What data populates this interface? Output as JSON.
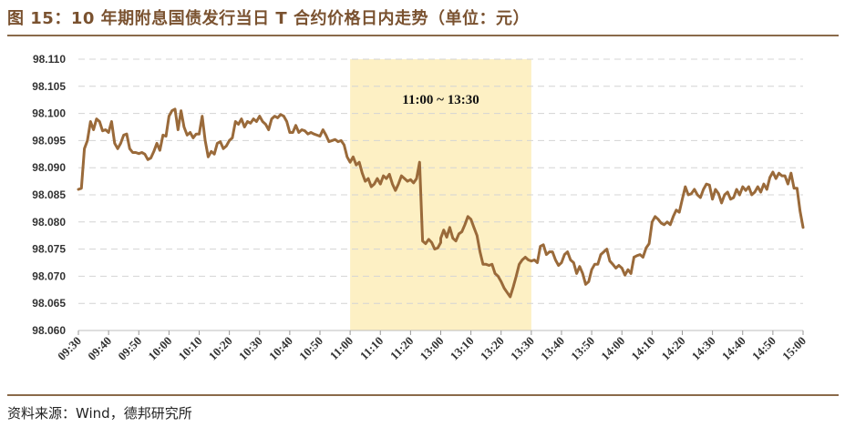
{
  "title": "图 15：10 年期附息国债发行当日 T 合约价格日内走势（单位：元）",
  "source": "资料来源：Wind，德邦研究所",
  "chart_data": {
    "type": "line",
    "title": "图 15：10 年期附息国债发行当日 T 合约价格日内走势（单位：元）",
    "xlabel": "",
    "ylabel": "",
    "ylim": [
      98.06,
      98.11
    ],
    "yticks": [
      "98.110",
      "98.105",
      "98.100",
      "98.095",
      "98.090",
      "98.085",
      "98.080",
      "98.075",
      "98.070",
      "98.065",
      "98.060"
    ],
    "xticks": [
      "09:30",
      "09:40",
      "09:50",
      "10:00",
      "10:10",
      "10:20",
      "10:30",
      "10:40",
      "10:50",
      "11:00",
      "11:10",
      "11:20",
      "13:00",
      "13:10",
      "13:20",
      "13:30",
      "13:40",
      "13:50",
      "14:00",
      "14:10",
      "14:20",
      "14:30",
      "14:40",
      "14:50",
      "15:00"
    ],
    "grid": "horizontal dashed",
    "legend": "none",
    "highlight": {
      "start": "11:00",
      "end": "13:30",
      "label": "11:00 ~ 13:30",
      "color": "#fdf0c4"
    },
    "series": [
      {
        "color": "#9a6a3a",
        "points": [
          [
            "09:30",
            98.086
          ],
          [
            "09:31",
            98.0862
          ],
          [
            "09:32",
            98.0935
          ],
          [
            "09:33",
            98.095
          ],
          [
            "09:34",
            98.0985
          ],
          [
            "09:35",
            98.097
          ],
          [
            "09:36",
            98.099
          ],
          [
            "09:37",
            98.0985
          ],
          [
            "09:38",
            98.0968
          ],
          [
            "09:39",
            98.097
          ],
          [
            "09:40",
            98.0965
          ],
          [
            "09:41",
            98.0985
          ],
          [
            "09:42",
            98.0945
          ],
          [
            "09:43",
            98.0935
          ],
          [
            "09:44",
            98.0945
          ],
          [
            "09:45",
            98.096
          ],
          [
            "09:46",
            98.0962
          ],
          [
            "09:47",
            98.0935
          ],
          [
            "09:48",
            98.0928
          ],
          [
            "09:49",
            98.0928
          ],
          [
            "09:50",
            98.0926
          ],
          [
            "09:51",
            98.0928
          ],
          [
            "09:52",
            98.0925
          ],
          [
            "09:53",
            98.0915
          ],
          [
            "09:54",
            98.0918
          ],
          [
            "09:55",
            98.093
          ],
          [
            "09:56",
            98.0945
          ],
          [
            "09:57",
            98.0932
          ],
          [
            "09:58",
            98.096
          ],
          [
            "09:59",
            98.0958
          ],
          [
            "10:00",
            98.0995
          ],
          [
            "10:01",
            98.1005
          ],
          [
            "10:02",
            98.1008
          ],
          [
            "10:03",
            98.097
          ],
          [
            "10:04",
            98.1005
          ],
          [
            "10:05",
            98.0975
          ],
          [
            "10:06",
            98.096
          ],
          [
            "10:07",
            98.0965
          ],
          [
            "10:08",
            98.0955
          ],
          [
            "10:09",
            98.0962
          ],
          [
            "10:10",
            98.0962
          ],
          [
            "10:11",
            98.0995
          ],
          [
            "10:12",
            98.095
          ],
          [
            "10:13",
            98.092
          ],
          [
            "10:14",
            98.093
          ],
          [
            "10:15",
            98.0925
          ],
          [
            "10:16",
            98.0945
          ],
          [
            "10:17",
            98.0948
          ],
          [
            "10:18",
            98.0935
          ],
          [
            "10:19",
            98.094
          ],
          [
            "10:20",
            98.095
          ],
          [
            "10:21",
            98.0955
          ],
          [
            "10:22",
            98.0985
          ],
          [
            "10:23",
            98.098
          ],
          [
            "10:24",
            98.099
          ],
          [
            "10:25",
            98.0975
          ],
          [
            "10:26",
            98.0985
          ],
          [
            "10:27",
            98.0982
          ],
          [
            "10:28",
            98.099
          ],
          [
            "10:29",
            98.0985
          ],
          [
            "10:30",
            98.0995
          ],
          [
            "10:31",
            98.0985
          ],
          [
            "10:32",
            98.098
          ],
          [
            "10:33",
            98.097
          ],
          [
            "10:34",
            98.099
          ],
          [
            "10:35",
            98.0995
          ],
          [
            "10:36",
            98.0992
          ],
          [
            "10:37",
            98.0998
          ],
          [
            "10:38",
            98.0995
          ],
          [
            "10:39",
            98.0985
          ],
          [
            "10:40",
            98.0965
          ],
          [
            "10:41",
            98.0965
          ],
          [
            "10:42",
            98.0978
          ],
          [
            "10:43",
            98.0965
          ],
          [
            "10:44",
            98.097
          ],
          [
            "10:45",
            98.0968
          ],
          [
            "10:46",
            98.0962
          ],
          [
            "10:47",
            98.0965
          ],
          [
            "10:48",
            98.0962
          ],
          [
            "10:49",
            98.096
          ],
          [
            "10:50",
            98.0958
          ],
          [
            "10:51",
            98.097
          ],
          [
            "10:52",
            98.096
          ],
          [
            "10:53",
            98.0948
          ],
          [
            "10:54",
            98.095
          ],
          [
            "10:55",
            98.0952
          ],
          [
            "10:56",
            98.0948
          ],
          [
            "10:57",
            98.095
          ],
          [
            "10:58",
            98.0942
          ],
          [
            "10:59",
            98.092
          ],
          [
            "11:00",
            98.091
          ],
          [
            "11:01",
            98.092
          ],
          [
            "11:02",
            98.0905
          ],
          [
            "11:03",
            98.091
          ],
          [
            "11:04",
            98.089
          ],
          [
            "11:05",
            98.0875
          ],
          [
            "11:06",
            98.088
          ],
          [
            "11:07",
            98.0865
          ],
          [
            "11:08",
            98.087
          ],
          [
            "11:09",
            98.088
          ],
          [
            "11:10",
            98.087
          ],
          [
            "11:11",
            98.0885
          ],
          [
            "11:12",
            98.088
          ],
          [
            "11:13",
            98.0888
          ],
          [
            "11:14",
            98.087
          ],
          [
            "11:15",
            98.0858
          ],
          [
            "11:16",
            98.087
          ],
          [
            "11:17",
            98.0885
          ],
          [
            "11:18",
            98.088
          ],
          [
            "11:19",
            98.0875
          ],
          [
            "11:20",
            98.0878
          ],
          [
            "11:21",
            98.0872
          ],
          [
            "11:22",
            98.088
          ],
          [
            "11:23",
            98.091
          ],
          [
            "11:24",
            98.0765
          ],
          [
            "11:25",
            98.076
          ],
          [
            "11:26",
            98.0768
          ],
          [
            "11:27",
            98.0762
          ],
          [
            "11:28",
            98.075
          ],
          [
            "11:29",
            98.0752
          ],
          [
            "11:30",
            98.0762
          ],
          [
            "13:00",
            98.077
          ],
          [
            "13:01",
            98.0785
          ],
          [
            "13:02",
            98.0772
          ],
          [
            "13:03",
            98.079
          ],
          [
            "13:04",
            98.077
          ],
          [
            "13:05",
            98.0765
          ],
          [
            "13:06",
            98.0778
          ],
          [
            "13:07",
            98.0782
          ],
          [
            "13:08",
            98.0795
          ],
          [
            "13:09",
            98.081
          ],
          [
            "13:10",
            98.0805
          ],
          [
            "13:11",
            98.079
          ],
          [
            "13:12",
            98.0775
          ],
          [
            "13:13",
            98.0745
          ],
          [
            "13:14",
            98.0722
          ],
          [
            "13:15",
            98.0722
          ],
          [
            "13:16",
            98.072
          ],
          [
            "13:17",
            98.0722
          ],
          [
            "13:18",
            98.0705
          ],
          [
            "13:19",
            98.07
          ],
          [
            "13:20",
            98.069
          ],
          [
            "13:21",
            98.0678
          ],
          [
            "13:22",
            98.067
          ],
          [
            "13:23",
            98.0662
          ],
          [
            "13:24",
            98.068
          ],
          [
            "13:25",
            98.07
          ],
          [
            "13:26",
            98.0722
          ],
          [
            "13:27",
            98.073
          ],
          [
            "13:28",
            98.0735
          ],
          [
            "13:29",
            98.073
          ],
          [
            "13:30",
            98.0728
          ],
          [
            "13:31",
            98.073
          ],
          [
            "13:32",
            98.0725
          ],
          [
            "13:33",
            98.0755
          ],
          [
            "13:34",
            98.0758
          ],
          [
            "13:35",
            98.074
          ],
          [
            "13:36",
            98.0745
          ],
          [
            "13:37",
            98.0745
          ],
          [
            "13:38",
            98.073
          ],
          [
            "13:39",
            98.072
          ],
          [
            "13:40",
            98.0725
          ],
          [
            "13:41",
            98.074
          ],
          [
            "13:42",
            98.0745
          ],
          [
            "13:43",
            98.073
          ],
          [
            "13:44",
            98.0725
          ],
          [
            "13:45",
            98.0705
          ],
          [
            "13:46",
            98.0718
          ],
          [
            "13:47",
            98.0705
          ],
          [
            "13:48",
            98.0685
          ],
          [
            "13:49",
            98.069
          ],
          [
            "13:50",
            98.0712
          ],
          [
            "13:51",
            98.0722
          ],
          [
            "13:52",
            98.0722
          ],
          [
            "13:53",
            98.074
          ],
          [
            "13:54",
            98.0745
          ],
          [
            "13:55",
            98.075
          ],
          [
            "13:56",
            98.0728
          ],
          [
            "13:57",
            98.0722
          ],
          [
            "13:58",
            98.0715
          ],
          [
            "13:59",
            98.072
          ],
          [
            "14:00",
            98.0715
          ],
          [
            "14:01",
            98.0702
          ],
          [
            "14:02",
            98.0712
          ],
          [
            "14:03",
            98.0705
          ],
          [
            "14:04",
            98.0735
          ],
          [
            "14:05",
            98.0738
          ],
          [
            "14:06",
            98.074
          ],
          [
            "14:07",
            98.0735
          ],
          [
            "14:08",
            98.0752
          ],
          [
            "14:09",
            98.076
          ],
          [
            "14:10",
            98.08
          ],
          [
            "14:11",
            98.081
          ],
          [
            "14:12",
            98.0805
          ],
          [
            "14:13",
            98.0798
          ],
          [
            "14:14",
            98.0795
          ],
          [
            "14:15",
            98.08
          ],
          [
            "14:16",
            98.0795
          ],
          [
            "14:17",
            98.081
          ],
          [
            "14:18",
            98.0822
          ],
          [
            "14:19",
            98.0818
          ],
          [
            "14:20",
            98.0842
          ],
          [
            "14:21",
            98.0865
          ],
          [
            "14:22",
            98.085
          ],
          [
            "14:23",
            98.0852
          ],
          [
            "14:24",
            98.086
          ],
          [
            "14:25",
            98.085
          ],
          [
            "14:26",
            98.0845
          ],
          [
            "14:27",
            98.086
          ],
          [
            "14:28",
            98.087
          ],
          [
            "14:29",
            98.0868
          ],
          [
            "14:30",
            98.0842
          ],
          [
            "14:31",
            98.086
          ],
          [
            "14:32",
            98.0852
          ],
          [
            "14:33",
            98.0835
          ],
          [
            "14:34",
            98.085
          ],
          [
            "14:35",
            98.0855
          ],
          [
            "14:36",
            98.0842
          ],
          [
            "14:37",
            98.0845
          ],
          [
            "14:38",
            98.086
          ],
          [
            "14:39",
            98.085
          ],
          [
            "14:40",
            98.0865
          ],
          [
            "14:41",
            98.0858
          ],
          [
            "14:42",
            98.0865
          ],
          [
            "14:43",
            98.085
          ],
          [
            "14:44",
            98.0855
          ],
          [
            "14:45",
            98.0865
          ],
          [
            "14:46",
            98.0855
          ],
          [
            "14:47",
            98.087
          ],
          [
            "14:48",
            98.086
          ],
          [
            "14:49",
            98.0882
          ],
          [
            "14:50",
            98.0892
          ],
          [
            "14:51",
            98.088
          ],
          [
            "14:52",
            98.089
          ],
          [
            "14:53",
            98.0885
          ],
          [
            "14:54",
            98.0885
          ],
          [
            "14:55",
            98.087
          ],
          [
            "14:56",
            98.089
          ],
          [
            "14:57",
            98.0862
          ],
          [
            "14:58",
            98.0862
          ],
          [
            "14:59",
            98.082
          ],
          [
            "15:00",
            98.079
          ]
        ]
      }
    ]
  }
}
